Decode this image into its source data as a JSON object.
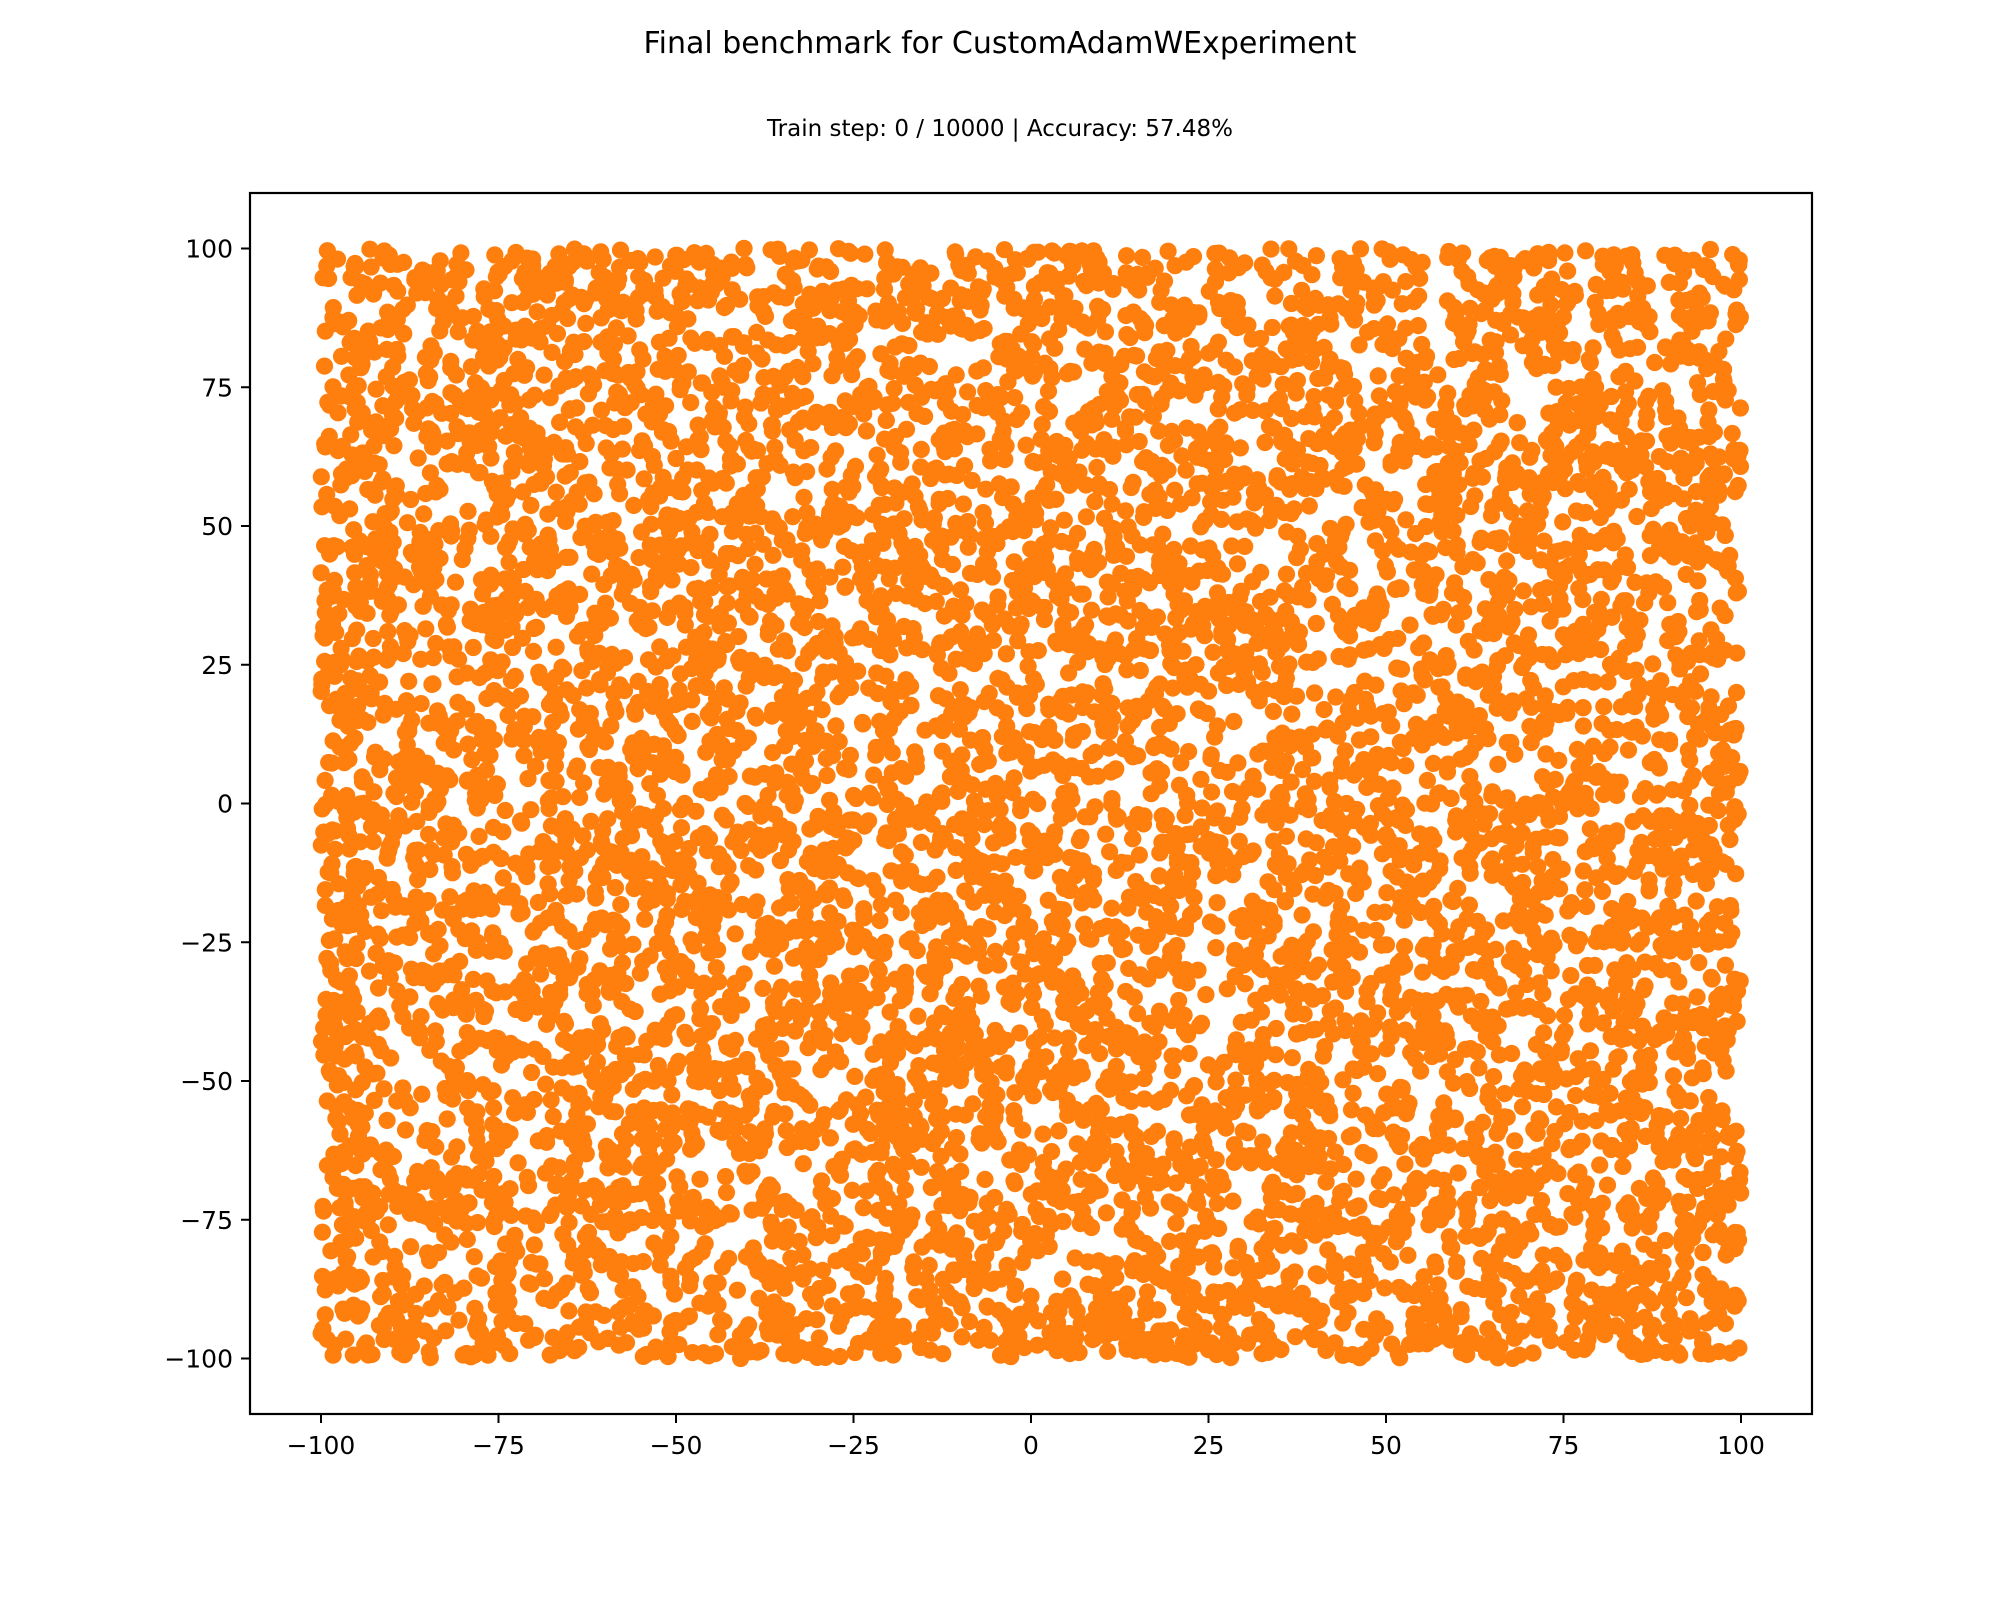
{
  "figure": {
    "suptitle": "Final benchmark for CustomAdamWExperiment",
    "subtitle": "Train step: 0 / 10000 | Accuracy: 57.48%"
  },
  "chart_data": {
    "type": "scatter",
    "title": "Train step: 0 / 10000 | Accuracy: 57.48%",
    "xlabel": "",
    "ylabel": "",
    "xlim": [
      -110,
      110
    ],
    "ylim": [
      -110,
      110
    ],
    "xticks": [
      -100,
      -75,
      -50,
      -25,
      0,
      25,
      50,
      75,
      100
    ],
    "yticks": [
      -100,
      -75,
      -50,
      -25,
      0,
      25,
      50,
      75,
      100
    ],
    "xtick_labels": [
      "−100",
      "−75",
      "−50",
      "−25",
      "0",
      "25",
      "50",
      "75",
      "100"
    ],
    "ytick_labels": [
      "−100",
      "−75",
      "−50",
      "−25",
      "0",
      "25",
      "50",
      "75",
      "100"
    ],
    "grid": false,
    "marker_color": "#ff7f0e",
    "series": [
      {
        "points": [
          [
            -99.1,
            99.6
          ],
          [
            -95.2,
            97.3
          ],
          [
            -90.4,
            98.8
          ],
          [
            -85.7,
            96.1
          ],
          [
            -80.3,
            99.2
          ],
          [
            -74.9,
            95.4
          ],
          [
            -70.2,
            98.1
          ],
          [
            -65.1,
            96.7
          ],
          [
            -60.6,
            99.4
          ],
          [
            -55.3,
            97.8
          ],
          [
            -50.1,
            95.9
          ],
          [
            -45.8,
            99.0
          ],
          [
            -40.2,
            97.1
          ],
          [
            -35.4,
            98.6
          ],
          [
            -30.1,
            96.3
          ],
          [
            -25.7,
            99.5
          ],
          [
            -20.3,
            97.6
          ],
          [
            -15.2,
            95.8
          ],
          [
            -10.6,
            98.9
          ],
          [
            -5.1,
            96.4
          ],
          [
            0.4,
            99.3
          ],
          [
            5.8,
            97.2
          ],
          [
            10.2,
            95.6
          ],
          [
            15.7,
            98.4
          ],
          [
            20.3,
            96.9
          ],
          [
            25.9,
            99.1
          ],
          [
            30.1,
            97.4
          ],
          [
            35.6,
            95.7
          ],
          [
            40.2,
            98.7
          ],
          [
            45.8,
            96.2
          ],
          [
            50.4,
            99.4
          ],
          [
            55.1,
            97.5
          ],
          [
            60.7,
            95.9
          ],
          [
            65.3,
            98.6
          ],
          [
            70.8,
            96.5
          ],
          [
            75.2,
            99.2
          ],
          [
            80.6,
            97.1
          ],
          [
            85.1,
            95.6
          ],
          [
            90.7,
            98.8
          ],
          [
            95.3,
            96.7
          ],
          [
            99.6,
            97.4
          ],
          [
            -98.3,
            -99.4
          ],
          [
            -93.6,
            -97.2
          ],
          [
            -88.9,
            -98.9
          ],
          [
            -84.1,
            -96.3
          ],
          [
            -79.5,
            -99.1
          ],
          [
            -74.2,
            -97.7
          ],
          [
            -69.8,
            -95.8
          ],
          [
            -64.3,
            -98.6
          ],
          [
            -59.7,
            -96.4
          ],
          [
            -54.2,
            -99.3
          ],
          [
            -49.6,
            -97.5
          ],
          [
            -44.1,
            -95.7
          ],
          [
            -39.5,
            -98.8
          ],
          [
            -34.2,
            -96.6
          ],
          [
            -29.8,
            -99.2
          ],
          [
            -24.3,
            -97.3
          ],
          [
            -19.6,
            -95.9
          ],
          [
            -14.2,
            -98.5
          ],
          [
            -9.7,
            -96.1
          ],
          [
            -4.3,
            -99.4
          ],
          [
            0.9,
            -97.6
          ],
          [
            5.4,
            -95.5
          ],
          [
            10.8,
            -98.7
          ],
          [
            15.3,
            -96.8
          ],
          [
            20.9,
            -99.1
          ],
          [
            25.4,
            -97.2
          ],
          [
            30.8,
            -95.8
          ],
          [
            35.2,
            -98.4
          ],
          [
            40.7,
            -96.5
          ],
          [
            45.3,
            -99.3
          ],
          [
            50.8,
            -97.4
          ],
          [
            55.2,
            -95.6
          ],
          [
            60.6,
            -98.9
          ],
          [
            65.1,
            -96.3
          ],
          [
            70.7,
            -99.0
          ],
          [
            75.3,
            -97.1
          ],
          [
            80.8,
            -95.7
          ],
          [
            85.2,
            -98.6
          ],
          [
            90.6,
            -96.2
          ],
          [
            95.4,
            -99.2
          ],
          [
            99.7,
            -98.1
          ],
          [
            -99.4,
            85.1
          ],
          [
            -97.6,
            70.4
          ],
          [
            -99.2,
            55.7
          ],
          [
            -98.1,
            40.2
          ],
          [
            -99.5,
            25.6
          ],
          [
            -97.3,
            10.1
          ],
          [
            -99.0,
            -5.4
          ],
          [
            -98.4,
            -20.8
          ],
          [
            -99.3,
            -35.3
          ],
          [
            -97.7,
            -50.7
          ],
          [
            -99.1,
            -65.2
          ],
          [
            -98.6,
            -80.6
          ],
          [
            -99.4,
            -92.1
          ],
          [
            99.3,
            88.2
          ],
          [
            97.8,
            72.7
          ],
          [
            99.6,
            57.3
          ],
          [
            98.2,
            42.8
          ],
          [
            99.4,
            27.1
          ],
          [
            97.6,
            12.5
          ],
          [
            99.1,
            -2.9
          ],
          [
            98.5,
            -18.4
          ],
          [
            99.5,
            -33.8
          ],
          [
            97.9,
            -48.2
          ],
          [
            99.2,
            -63.7
          ],
          [
            98.3,
            -78.1
          ],
          [
            99.6,
            -89.6
          ],
          [
            -85.3,
            80.4
          ],
          [
            -72.1,
            66.2
          ],
          [
            -58.4,
            85.7
          ],
          [
            -44.7,
            71.3
          ],
          [
            -31.6,
            59.8
          ],
          [
            -17.2,
            82.5
          ],
          [
            -3.8,
            68.9
          ],
          [
            9.4,
            87.1
          ],
          [
            23.1,
            73.6
          ],
          [
            36.8,
            61.2
          ],
          [
            50.2,
            84.3
          ],
          [
            63.9,
            70.8
          ],
          [
            77.4,
            57.5
          ],
          [
            90.1,
            79.2
          ],
          [
            -90.6,
            45.3
          ],
          [
            -76.2,
            31.8
          ],
          [
            -62.9,
            48.6
          ],
          [
            -49.5,
            36.1
          ],
          [
            -36.2,
            22.7
          ],
          [
            -22.8,
            41.4
          ],
          [
            -9.1,
            28.9
          ],
          [
            4.3,
            47.2
          ],
          [
            17.8,
            33.6
          ],
          [
            31.4,
            20.1
          ],
          [
            44.9,
            38.7
          ],
          [
            58.3,
            25.2
          ],
          [
            71.8,
            43.9
          ],
          [
            85.4,
            30.4
          ],
          [
            -87.9,
            8.6
          ],
          [
            -74.4,
            -5.1
          ],
          [
            -60.8,
            12.3
          ],
          [
            -47.2,
            -1.4
          ],
          [
            -33.7,
            15.9
          ],
          [
            -20.1,
            2.4
          ],
          [
            -6.5,
            -11.2
          ],
          [
            7.1,
            6.3
          ],
          [
            20.6,
            -7.8
          ],
          [
            34.2,
            9.7
          ],
          [
            47.8,
            -3.6
          ],
          [
            61.3,
            13.1
          ],
          [
            74.9,
            -0.2
          ],
          [
            88.5,
            16.4
          ],
          [
            -91.2,
            -28.7
          ],
          [
            -77.6,
            -42.3
          ],
          [
            -64.1,
            -24.9
          ],
          [
            -50.5,
            -38.4
          ],
          [
            -37.0,
            -21.6
          ],
          [
            -23.4,
            -35.1
          ],
          [
            -9.9,
            -48.7
          ],
          [
            3.7,
            -31.2
          ],
          [
            17.2,
            -44.8
          ],
          [
            30.8,
            -27.3
          ],
          [
            44.3,
            -40.9
          ],
          [
            57.9,
            -23.5
          ],
          [
            71.4,
            -37.1
          ],
          [
            85.0,
            -50.6
          ],
          [
            -86.4,
            -66.3
          ],
          [
            -72.8,
            -79.8
          ],
          [
            -59.3,
            -62.4
          ],
          [
            -45.7,
            -75.9
          ],
          [
            -32.2,
            -58.6
          ],
          [
            -18.6,
            -72.1
          ],
          [
            -5.1,
            -85.7
          ],
          [
            8.5,
            -68.2
          ],
          [
            22.0,
            -81.8
          ],
          [
            35.6,
            -64.3
          ],
          [
            49.1,
            -77.9
          ],
          [
            62.7,
            -60.5
          ],
          [
            76.2,
            -74.0
          ],
          [
            89.8,
            -87.6
          ],
          [
            -66.7,
            94.2
          ],
          [
            -16.1,
            93.5
          ],
          [
            33.8,
            94.7
          ],
          [
            83.3,
            93.9
          ],
          [
            -56.2,
            -93.8
          ],
          [
            -6.6,
            -94.4
          ],
          [
            43.9,
            -93.6
          ],
          [
            93.1,
            -94.9
          ],
          [
            -95.6,
            62.8
          ],
          [
            -95.1,
            -12.7
          ],
          [
            -95.8,
            -74.3
          ],
          [
            95.5,
            66.1
          ],
          [
            95.2,
            -9.4
          ],
          [
            95.7,
            -72.6
          ],
          [
            -40.3,
            52.4
          ],
          [
            10.2,
            15.7
          ],
          [
            60.1,
            -15.3
          ],
          [
            -10.5,
            -60.2
          ],
          [
            40.7,
            60.9
          ],
          [
            -60.2,
            -10.8
          ],
          [
            25.4,
            -90.1
          ],
          [
            -25.7,
            90.6
          ],
          [
            75.6,
            90.3
          ],
          [
            -75.3,
            -90.4
          ]
        ]
      }
    ]
  }
}
